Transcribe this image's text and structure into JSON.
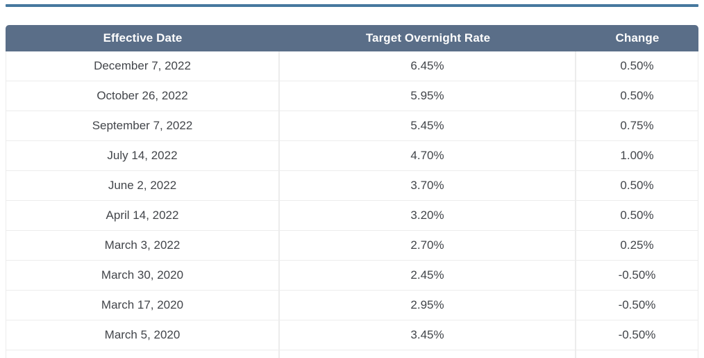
{
  "page": {
    "top_rule_color": "#46789e"
  },
  "table": {
    "header_bg": "#5a6e88",
    "columns": [
      {
        "label": "Effective Date"
      },
      {
        "label": "Target Overnight Rate"
      },
      {
        "label": "Change"
      }
    ],
    "rows": [
      {
        "effective_date": "December 7, 2022",
        "target_overnight_rate": "6.45%",
        "change": "0.50%"
      },
      {
        "effective_date": "October 26, 2022",
        "target_overnight_rate": "5.95%",
        "change": "0.50%"
      },
      {
        "effective_date": "September 7, 2022",
        "target_overnight_rate": "5.45%",
        "change": "0.75%"
      },
      {
        "effective_date": "July 14, 2022",
        "target_overnight_rate": "4.70%",
        "change": "1.00%"
      },
      {
        "effective_date": "June 2, 2022",
        "target_overnight_rate": "3.70%",
        "change": "0.50%"
      },
      {
        "effective_date": "April 14, 2022",
        "target_overnight_rate": "3.20%",
        "change": "0.50%"
      },
      {
        "effective_date": "March 3, 2022",
        "target_overnight_rate": "2.70%",
        "change": "0.25%"
      },
      {
        "effective_date": "March 30, 2020",
        "target_overnight_rate": "2.45%",
        "change": "-0.50%"
      },
      {
        "effective_date": "March 17, 2020",
        "target_overnight_rate": "2.95%",
        "change": "-0.50%"
      },
      {
        "effective_date": "March 5, 2020",
        "target_overnight_rate": "3.45%",
        "change": "-0.50%"
      }
    ]
  }
}
